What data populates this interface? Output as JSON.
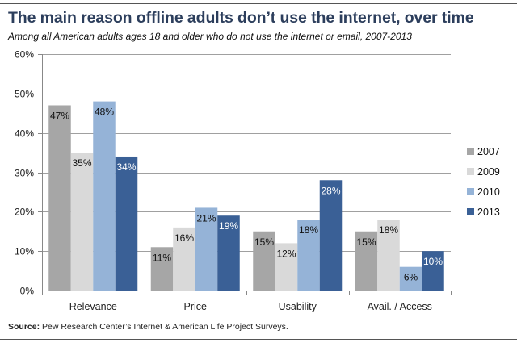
{
  "title": "The main reason offline adults don’t use the internet, over time",
  "subtitle": "Among all American adults ages 18 and older who do not use the internet or email, 2007-2013",
  "source": {
    "label": "Source:",
    "text": " Pew Research Center’s Internet & American Life Project Surveys."
  },
  "chart_data": {
    "type": "bar",
    "title": "The main reason offline adults don’t use the internet, over time",
    "subtitle": "Among all American adults ages 18 and older who do not use the internet or email, 2007-2013",
    "xlabel": "",
    "ylabel": "",
    "categories": [
      "Relevance",
      "Price",
      "Usability",
      "Avail. / Access"
    ],
    "series": [
      {
        "name": "2007",
        "color": "#a6a6a6",
        "label_color": "#111111",
        "values": [
          47,
          11,
          15,
          15
        ]
      },
      {
        "name": "2009",
        "color": "#d9d9d9",
        "label_color": "#111111",
        "values": [
          35,
          16,
          12,
          18
        ]
      },
      {
        "name": "2010",
        "color": "#95b3d7",
        "label_color": "#111111",
        "values": [
          48,
          21,
          18,
          6
        ]
      },
      {
        "name": "2013",
        "color": "#3a6096",
        "label_color": "#ffffff",
        "values": [
          34,
          19,
          28,
          10
        ]
      }
    ],
    "ylim": [
      0,
      60
    ],
    "yticks": [
      0,
      10,
      20,
      30,
      40,
      50,
      60
    ],
    "ytick_labels": [
      "0%",
      "10%",
      "20%",
      "30%",
      "40%",
      "50%",
      "60%"
    ],
    "value_suffix": "%",
    "grid": true,
    "legend_position": "right"
  }
}
